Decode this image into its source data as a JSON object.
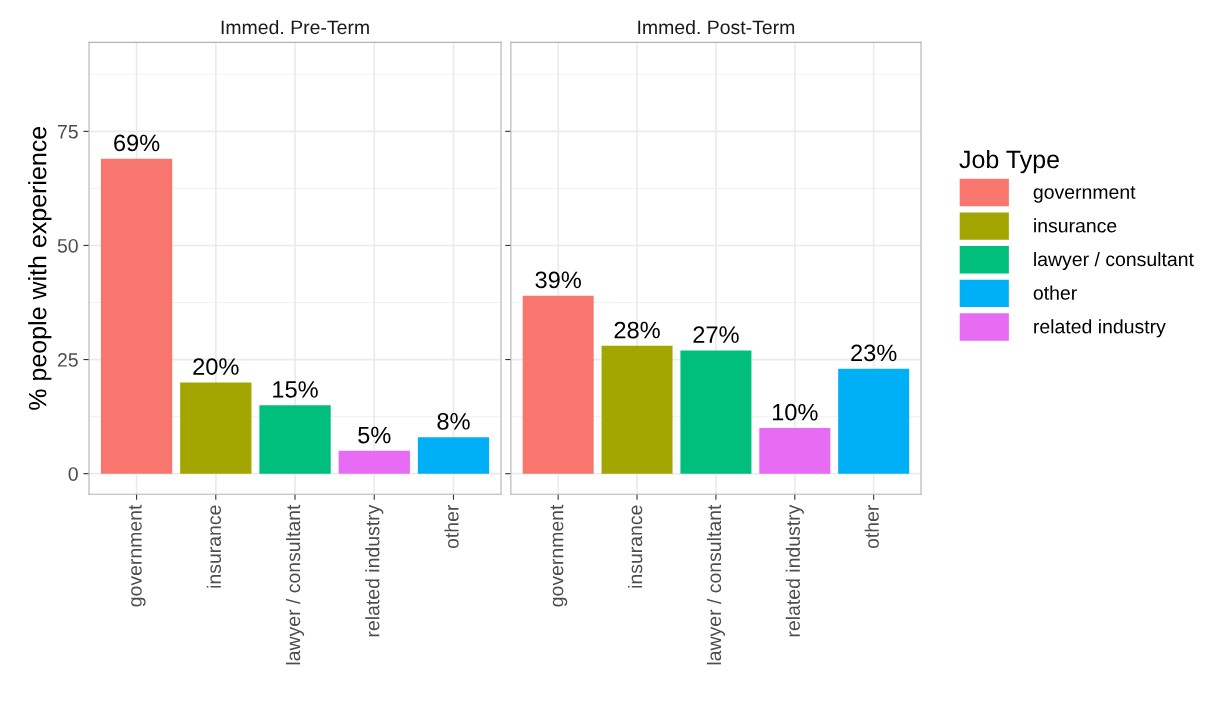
{
  "chart_data": [
    {
      "type": "bar",
      "title": "Immed. Pre-Term",
      "ylabel": "% people with experience",
      "categories": [
        "government",
        "insurance",
        "lawyer / consultant",
        "related industry",
        "other"
      ],
      "ylim": [
        -4.5,
        94.5
      ],
      "yticks": [
        0,
        25,
        50,
        75
      ],
      "grid": true,
      "series": [
        {
          "color": "#f8766d",
          "values": [
            69,
            null,
            null,
            null,
            null
          ],
          "value_labels": [
            "69%",
            null,
            null,
            null,
            null
          ]
        },
        {
          "color": "#a3a500",
          "values": [
            null,
            20,
            null,
            null,
            null
          ],
          "value_labels": [
            null,
            "20%",
            null,
            null,
            null
          ]
        },
        {
          "color": "#00bf7d",
          "values": [
            null,
            null,
            15,
            null,
            null
          ],
          "value_labels": [
            null,
            null,
            "15%",
            null,
            null
          ]
        },
        {
          "color": "#00b0f6",
          "values": [
            null,
            null,
            null,
            null,
            8
          ],
          "value_labels": [
            null,
            null,
            null,
            null,
            "8%"
          ]
        },
        {
          "color": "#e76bf3",
          "values": [
            null,
            null,
            null,
            5,
            null
          ],
          "value_labels": [
            null,
            null,
            null,
            "5%",
            null
          ]
        }
      ]
    },
    {
      "type": "bar",
      "title": "Immed. Post-Term",
      "legend_title": "Job Type",
      "categories": [
        "government",
        "insurance",
        "lawyer / consultant",
        "related industry",
        "other"
      ],
      "ylim": [
        -4.5,
        94.5
      ],
      "yticks": [
        0,
        25,
        50,
        75
      ],
      "grid": true,
      "legend": "right",
      "tick_labels": "x",
      "series": [
        {
          "name": "government",
          "color": "#f8766d",
          "values": [
            39,
            null,
            null,
            null,
            null
          ],
          "value_labels": [
            "39%",
            null,
            null,
            null,
            null
          ]
        },
        {
          "name": "insurance",
          "color": "#a3a500",
          "values": [
            null,
            28,
            null,
            null,
            null
          ],
          "value_labels": [
            null,
            "28%",
            null,
            null,
            null
          ]
        },
        {
          "name": "lawyer / consultant",
          "color": "#00bf7d",
          "values": [
            null,
            null,
            27,
            null,
            null
          ],
          "value_labels": [
            null,
            null,
            "27%",
            null,
            null
          ]
        },
        {
          "name": "other",
          "color": "#00b0f6",
          "values": [
            null,
            null,
            null,
            null,
            23
          ],
          "value_labels": [
            null,
            null,
            null,
            null,
            "23%"
          ]
        },
        {
          "name": "related industry",
          "color": "#e76bf3",
          "values": [
            null,
            null,
            null,
            10,
            null
          ],
          "value_labels": [
            null,
            null,
            null,
            "10%",
            null
          ]
        }
      ]
    }
  ]
}
